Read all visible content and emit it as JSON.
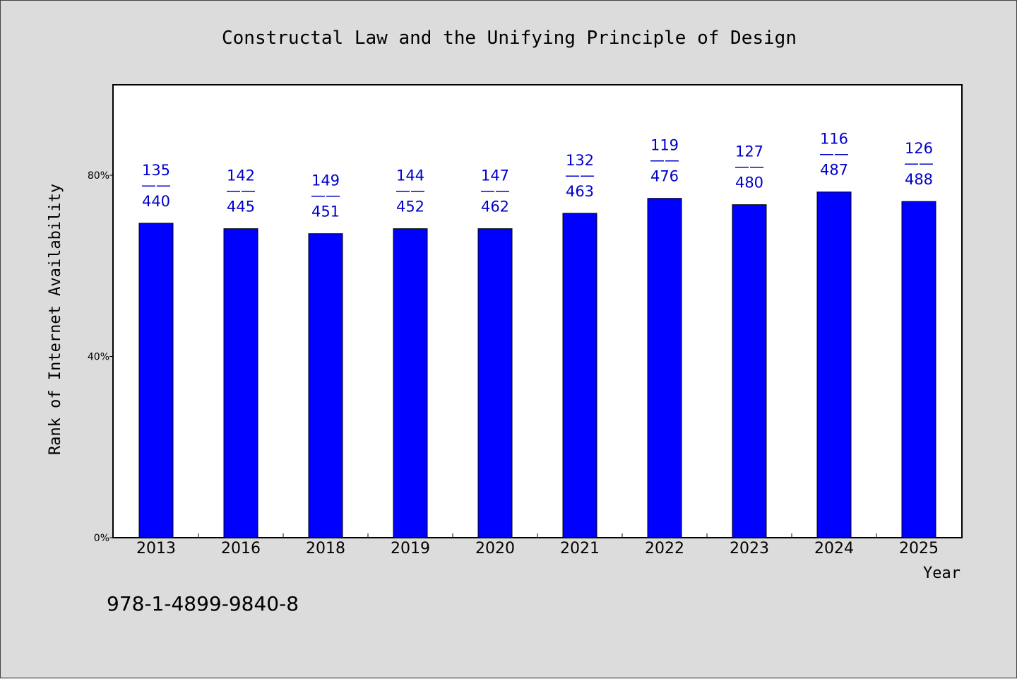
{
  "chart_data": {
    "type": "bar",
    "title": "Constructal Law and the Unifying Principle of Design",
    "xlabel": "Year",
    "ylabel": "Rank of Internet Availability",
    "categories": [
      "2013",
      "2016",
      "2018",
      "2019",
      "2020",
      "2021",
      "2022",
      "2023",
      "2024",
      "2025"
    ],
    "series": [
      {
        "values": [
          69.4,
          68.2,
          67.1,
          68.2,
          68.2,
          71.6,
          74.9,
          73.5,
          76.3,
          74.2
        ],
        "rank": [
          "135",
          "142",
          "149",
          "144",
          "147",
          "132",
          "119",
          "127",
          "116",
          "126"
        ],
        "total": [
          "440",
          "445",
          "451",
          "452",
          "462",
          "463",
          "476",
          "480",
          "487",
          "488"
        ]
      }
    ],
    "label_separator": "——",
    "ylim": [
      0,
      80
    ],
    "yticks": [
      0,
      40,
      80
    ],
    "ytick_labels": [
      "0%",
      "40%",
      "80%"
    ],
    "grid": false,
    "legend": "none",
    "colors": {
      "bar": "#0000ff",
      "label": "#0000cc",
      "background": "#dcdcdc",
      "plot_bg": "#ffffff"
    }
  },
  "footnote": "978-1-4899-9840-8"
}
